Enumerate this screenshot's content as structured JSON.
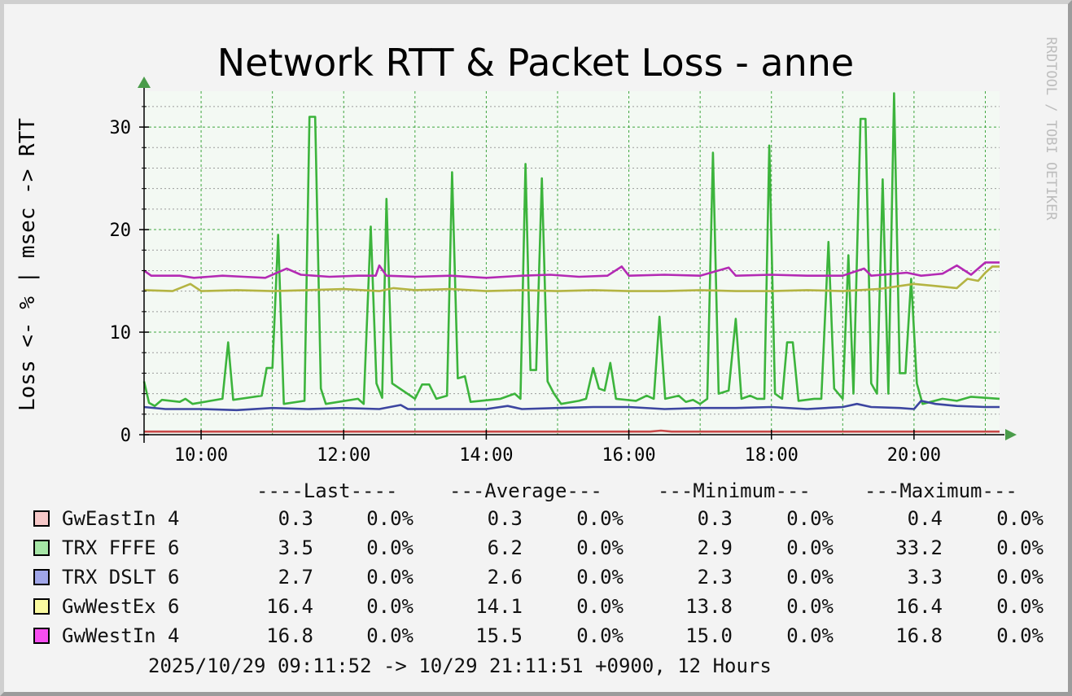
{
  "watermark": "RRDTOOL / TOBI OETIKER",
  "legend": {
    "headers": [
      "----Last----",
      "---Average---",
      "---Minimum---",
      "---Maximum---"
    ],
    "rows": [
      {
        "name": "GwEastIn 4",
        "color": "#f6c8c8",
        "last": "0.3",
        "last_loss": "0.0%",
        "avg": "0.3",
        "avg_loss": "0.0%",
        "min": "0.3",
        "min_loss": "0.0%",
        "max": "0.4",
        "max_loss": "0.0%"
      },
      {
        "name": "TRX FFFE 6",
        "color": "#a6e6a6",
        "last": "3.5",
        "last_loss": "0.0%",
        "avg": "6.2",
        "avg_loss": "0.0%",
        "min": "2.9",
        "min_loss": "0.0%",
        "max": "33.2",
        "max_loss": "0.0%"
      },
      {
        "name": "TRX DSLT 6",
        "color": "#a0a6e8",
        "last": "2.7",
        "last_loss": "0.0%",
        "avg": "2.6",
        "avg_loss": "0.0%",
        "min": "2.3",
        "min_loss": "0.0%",
        "max": "3.3",
        "max_loss": "0.0%"
      },
      {
        "name": "GwWestEx 6",
        "color": "#fafaa0",
        "last": "16.4",
        "last_loss": "0.0%",
        "avg": "14.1",
        "avg_loss": "0.0%",
        "min": "13.8",
        "min_loss": "0.0%",
        "max": "16.4",
        "max_loss": "0.0%"
      },
      {
        "name": "GwWestIn 4",
        "color": "#f74ef0",
        "last": "16.8",
        "last_loss": "0.0%",
        "avg": "15.5",
        "avg_loss": "0.0%",
        "min": "15.0",
        "min_loss": "0.0%",
        "max": "16.8",
        "max_loss": "0.0%"
      }
    ],
    "footer": "2025/10/29 09:11:52 -> 10/29 21:11:51 +0900, 12 Hours"
  },
  "chart_data": {
    "type": "line",
    "title": "Network RTT & Packet Loss - anne",
    "ylabel": "Loss <- % | msec -> RTT",
    "xlabel": "",
    "xlim": [
      9.2,
      21.2
    ],
    "ylim": [
      0,
      33.5
    ],
    "x_ticks": [
      10,
      12,
      14,
      16,
      18,
      20
    ],
    "x_tick_labels": [
      "10:00",
      "12:00",
      "14:00",
      "16:00",
      "18:00",
      "20:00"
    ],
    "y_ticks": [
      0,
      10,
      20,
      30
    ],
    "y_tick_labels": [
      "0",
      "10",
      "20",
      "30"
    ],
    "grid": true,
    "series": [
      {
        "name": "GwEastIn 4",
        "color": "#c84848",
        "points": [
          [
            9.2,
            0.3
          ],
          [
            16.3,
            0.3
          ],
          [
            16.45,
            0.4
          ],
          [
            16.6,
            0.3
          ],
          [
            21.2,
            0.3
          ]
        ]
      },
      {
        "name": "TRX FFFE 6",
        "color": "#3cb43c",
        "points": [
          [
            9.2,
            5.2
          ],
          [
            9.27,
            3.1
          ],
          [
            9.35,
            2.8
          ],
          [
            9.45,
            3.4
          ],
          [
            9.7,
            3.2
          ],
          [
            9.78,
            3.5
          ],
          [
            9.88,
            3.0
          ],
          [
            10.3,
            3.5
          ],
          [
            10.38,
            9.0
          ],
          [
            10.45,
            3.4
          ],
          [
            10.85,
            3.8
          ],
          [
            10.92,
            6.5
          ],
          [
            11.0,
            6.5
          ],
          [
            11.08,
            19.5
          ],
          [
            11.16,
            3.0
          ],
          [
            11.45,
            3.3
          ],
          [
            11.52,
            31.0
          ],
          [
            11.6,
            31.0
          ],
          [
            11.68,
            4.5
          ],
          [
            11.75,
            3.0
          ],
          [
            12.2,
            3.5
          ],
          [
            12.28,
            3.0
          ],
          [
            12.38,
            20.3
          ],
          [
            12.46,
            5.0
          ],
          [
            12.54,
            3.6
          ],
          [
            12.6,
            23.0
          ],
          [
            12.68,
            5.0
          ],
          [
            13.0,
            3.5
          ],
          [
            13.1,
            4.9
          ],
          [
            13.2,
            4.9
          ],
          [
            13.3,
            3.5
          ],
          [
            13.45,
            3.8
          ],
          [
            13.52,
            25.6
          ],
          [
            13.6,
            5.5
          ],
          [
            13.7,
            5.7
          ],
          [
            13.78,
            3.2
          ],
          [
            14.2,
            3.5
          ],
          [
            14.4,
            4.0
          ],
          [
            14.48,
            3.5
          ],
          [
            14.55,
            26.4
          ],
          [
            14.62,
            6.3
          ],
          [
            14.7,
            6.3
          ],
          [
            14.78,
            25.0
          ],
          [
            14.86,
            5.2
          ],
          [
            14.95,
            4.0
          ],
          [
            15.05,
            3.0
          ],
          [
            15.3,
            3.3
          ],
          [
            15.4,
            3.5
          ],
          [
            15.5,
            6.5
          ],
          [
            15.58,
            4.5
          ],
          [
            15.66,
            4.3
          ],
          [
            15.74,
            7.0
          ],
          [
            15.82,
            3.5
          ],
          [
            16.1,
            3.3
          ],
          [
            16.25,
            3.8
          ],
          [
            16.35,
            3.5
          ],
          [
            16.43,
            11.5
          ],
          [
            16.51,
            3.5
          ],
          [
            16.7,
            3.8
          ],
          [
            16.8,
            3.2
          ],
          [
            16.9,
            3.4
          ],
          [
            17.0,
            3.0
          ],
          [
            17.1,
            3.5
          ],
          [
            17.18,
            27.5
          ],
          [
            17.26,
            4.0
          ],
          [
            17.4,
            4.3
          ],
          [
            17.5,
            11.3
          ],
          [
            17.58,
            3.5
          ],
          [
            17.7,
            3.8
          ],
          [
            17.8,
            3.5
          ],
          [
            17.9,
            3.5
          ],
          [
            17.97,
            28.2
          ],
          [
            18.05,
            4.0
          ],
          [
            18.15,
            3.5
          ],
          [
            18.22,
            9.0
          ],
          [
            18.3,
            9.0
          ],
          [
            18.38,
            3.3
          ],
          [
            18.6,
            3.5
          ],
          [
            18.7,
            3.5
          ],
          [
            18.8,
            18.8
          ],
          [
            18.88,
            4.5
          ],
          [
            19.0,
            3.5
          ],
          [
            19.08,
            17.5
          ],
          [
            19.15,
            4.0
          ],
          [
            19.25,
            30.8
          ],
          [
            19.32,
            30.8
          ],
          [
            19.4,
            5.0
          ],
          [
            19.48,
            4.0
          ],
          [
            19.56,
            24.9
          ],
          [
            19.64,
            4.0
          ],
          [
            19.72,
            33.3
          ],
          [
            19.8,
            6.0
          ],
          [
            19.88,
            6.0
          ],
          [
            19.96,
            15.2
          ],
          [
            20.04,
            5.0
          ],
          [
            20.12,
            3.0
          ],
          [
            20.4,
            3.5
          ],
          [
            20.6,
            3.3
          ],
          [
            20.8,
            3.7
          ],
          [
            21.2,
            3.5
          ]
        ]
      },
      {
        "name": "TRX DSLT 6",
        "color": "#3c46a0",
        "points": [
          [
            9.2,
            2.7
          ],
          [
            9.5,
            2.5
          ],
          [
            10.0,
            2.5
          ],
          [
            10.5,
            2.4
          ],
          [
            11.0,
            2.6
          ],
          [
            11.5,
            2.5
          ],
          [
            12.0,
            2.6
          ],
          [
            12.5,
            2.5
          ],
          [
            12.8,
            2.9
          ],
          [
            12.9,
            2.5
          ],
          [
            13.5,
            2.5
          ],
          [
            14.0,
            2.5
          ],
          [
            14.3,
            2.8
          ],
          [
            14.5,
            2.5
          ],
          [
            15.0,
            2.6
          ],
          [
            15.5,
            2.7
          ],
          [
            16.0,
            2.7
          ],
          [
            16.5,
            2.5
          ],
          [
            17.0,
            2.6
          ],
          [
            17.5,
            2.6
          ],
          [
            18.0,
            2.7
          ],
          [
            18.5,
            2.5
          ],
          [
            19.0,
            2.7
          ],
          [
            19.2,
            3.0
          ],
          [
            19.4,
            2.7
          ],
          [
            19.8,
            2.6
          ],
          [
            20.0,
            2.5
          ],
          [
            20.1,
            3.3
          ],
          [
            20.3,
            3.0
          ],
          [
            20.6,
            2.8
          ],
          [
            21.0,
            2.7
          ],
          [
            21.2,
            2.7
          ]
        ]
      },
      {
        "name": "GwWestEx 6",
        "color": "#b4b442",
        "points": [
          [
            9.2,
            14.1
          ],
          [
            9.6,
            14.0
          ],
          [
            9.85,
            14.7
          ],
          [
            10.0,
            14.0
          ],
          [
            10.5,
            14.1
          ],
          [
            11.0,
            14.0
          ],
          [
            11.5,
            14.1
          ],
          [
            12.0,
            14.2
          ],
          [
            12.5,
            14.0
          ],
          [
            12.7,
            14.3
          ],
          [
            13.0,
            14.1
          ],
          [
            13.5,
            14.2
          ],
          [
            14.0,
            14.0
          ],
          [
            14.5,
            14.1
          ],
          [
            15.0,
            14.0
          ],
          [
            15.5,
            14.1
          ],
          [
            16.0,
            14.0
          ],
          [
            16.5,
            14.0
          ],
          [
            17.0,
            14.1
          ],
          [
            17.5,
            14.0
          ],
          [
            18.0,
            14.0
          ],
          [
            18.5,
            14.1
          ],
          [
            19.0,
            14.0
          ],
          [
            19.5,
            14.2
          ],
          [
            19.8,
            14.5
          ],
          [
            20.0,
            14.7
          ],
          [
            20.3,
            14.5
          ],
          [
            20.6,
            14.3
          ],
          [
            20.75,
            15.2
          ],
          [
            20.9,
            15.0
          ],
          [
            21.0,
            15.8
          ],
          [
            21.1,
            16.4
          ],
          [
            21.2,
            16.4
          ]
        ]
      },
      {
        "name": "GwWestIn 4",
        "color": "#b42ab4",
        "points": [
          [
            9.2,
            16.0
          ],
          [
            9.3,
            15.5
          ],
          [
            9.7,
            15.5
          ],
          [
            9.9,
            15.3
          ],
          [
            10.3,
            15.5
          ],
          [
            10.6,
            15.4
          ],
          [
            10.9,
            15.3
          ],
          [
            11.2,
            16.2
          ],
          [
            11.4,
            15.6
          ],
          [
            11.8,
            15.4
          ],
          [
            12.2,
            15.5
          ],
          [
            12.45,
            15.5
          ],
          [
            12.5,
            16.5
          ],
          [
            12.6,
            15.5
          ],
          [
            13.0,
            15.4
          ],
          [
            13.5,
            15.5
          ],
          [
            14.0,
            15.3
          ],
          [
            14.5,
            15.5
          ],
          [
            14.9,
            15.6
          ],
          [
            15.3,
            15.4
          ],
          [
            15.7,
            15.5
          ],
          [
            15.9,
            16.4
          ],
          [
            16.0,
            15.5
          ],
          [
            16.5,
            15.6
          ],
          [
            17.0,
            15.5
          ],
          [
            17.4,
            16.3
          ],
          [
            17.5,
            15.5
          ],
          [
            18.0,
            15.6
          ],
          [
            18.5,
            15.5
          ],
          [
            19.0,
            15.5
          ],
          [
            19.3,
            16.2
          ],
          [
            19.4,
            15.5
          ],
          [
            19.9,
            15.8
          ],
          [
            20.1,
            15.5
          ],
          [
            20.4,
            15.7
          ],
          [
            20.6,
            16.5
          ],
          [
            20.8,
            15.6
          ],
          [
            21.0,
            16.8
          ],
          [
            21.2,
            16.8
          ]
        ]
      }
    ]
  }
}
